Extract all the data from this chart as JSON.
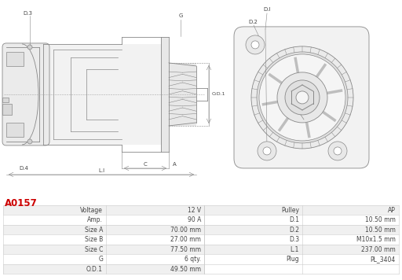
{
  "title": "A0157",
  "title_color": "#cc0000",
  "bg_color": "#ffffff",
  "table_row_bg_odd": "#f0f0f0",
  "table_row_bg_even": "#ffffff",
  "table_border_color": "#cccccc",
  "table_text_color": "#444444",
  "line_color": "#888888",
  "rows": [
    [
      "Voltage",
      "12 V",
      "Pulley",
      "AP"
    ],
    [
      "Amp.",
      "90 A",
      "D.1",
      "10.50 mm"
    ],
    [
      "Size A",
      "70.00 mm",
      "D.2",
      "10.50 mm"
    ],
    [
      "Size B",
      "27.00 mm",
      "D.3",
      "M10x1.5 mm"
    ],
    [
      "Size C",
      "77.50 mm",
      "L.1",
      "237.00 mm"
    ],
    [
      "G",
      "6 qty.",
      "Plug",
      "PL_3404"
    ],
    [
      "O.D.1",
      "49.50 mm",
      "",
      ""
    ]
  ]
}
